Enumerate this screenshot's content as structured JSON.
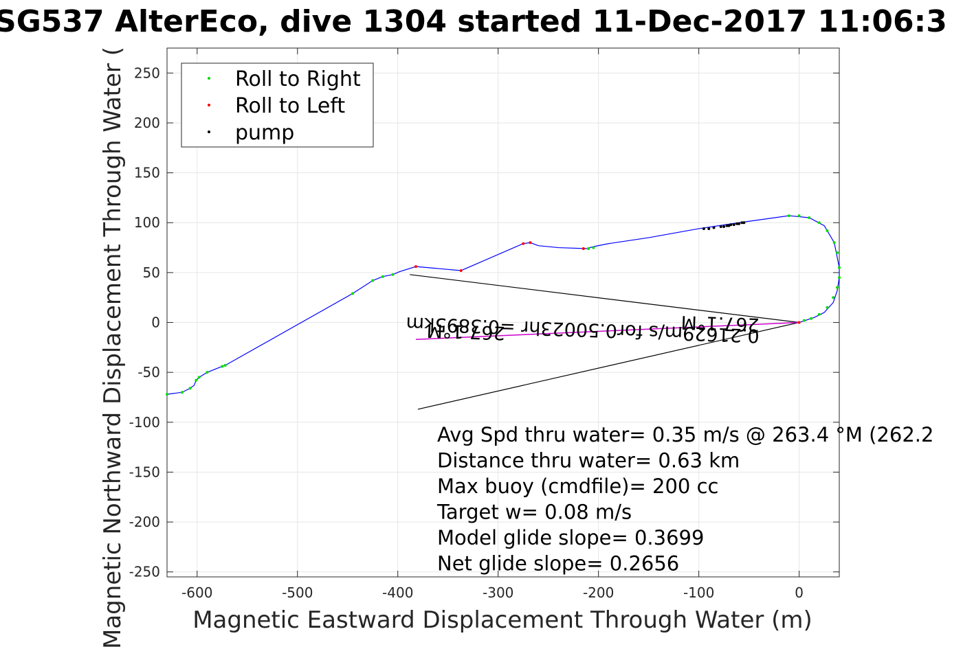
{
  "chart_data": {
    "type": "line",
    "title": "SG537 AlterEco, dive 1304 started 11-Dec-2017 11:06:3",
    "xlabel": "Magnetic Eastward Displacement Through Water (m)",
    "ylabel": "Magnetic Northward Displacement Through Water (",
    "xlim": [
      -630,
      40
    ],
    "ylim": [
      -255,
      275
    ],
    "xticks": [
      -600,
      -500,
      -400,
      -300,
      -200,
      -100,
      0
    ],
    "xtick_labels": [
      "-600",
      "-500",
      "-400",
      "-300",
      "-200",
      "-100",
      "0"
    ],
    "yticks": [
      -250,
      -200,
      -150,
      -100,
      -50,
      0,
      50,
      100,
      150,
      200,
      250
    ],
    "ytick_labels": [
      "-250",
      "-200",
      "-150",
      "-100",
      "-50",
      "0",
      "50",
      "100",
      "150",
      "200",
      "250"
    ],
    "grid": true,
    "legend_position": "top-left",
    "legend": [
      {
        "label": "Roll to Right",
        "color": "#00dd00"
      },
      {
        "label": "Roll to Left",
        "color": "#ff0000"
      },
      {
        "label": "pump",
        "color": "#000000"
      }
    ],
    "track": {
      "color": "#0000ff",
      "x": [
        -630,
        -615,
        -607,
        -603,
        -601,
        -598,
        -590,
        -575,
        -572,
        -445,
        -425,
        -415,
        -405,
        -398,
        -382,
        -337,
        -275,
        -268,
        -260,
        -240,
        -212,
        -205,
        -190,
        -150,
        -100,
        -80,
        -60,
        -10,
        10,
        25,
        35,
        40,
        40,
        38,
        34,
        25,
        15,
        0
      ],
      "y": [
        -72,
        -70,
        -66,
        -63,
        -58,
        -55,
        -50,
        -44,
        -43,
        29,
        42,
        46,
        48,
        51,
        56,
        52,
        79,
        80,
        77,
        75,
        74,
        76,
        79,
        85,
        94,
        97,
        100,
        107,
        105,
        97,
        80,
        55,
        45,
        32,
        20,
        10,
        5,
        0
      ]
    },
    "roll_right": {
      "color": "#00dd00",
      "x": [
        -630,
        -615,
        -607,
        -601,
        -598,
        -590,
        -575,
        -572,
        -445,
        -425,
        -415,
        -405,
        -210,
        -205,
        -10,
        0,
        10,
        20,
        28,
        35,
        38,
        40,
        40,
        38,
        34,
        28,
        20,
        12,
        5
      ],
      "y": [
        -72,
        -70,
        -66,
        -58,
        -55,
        -50,
        -44,
        -43,
        29,
        42,
        46,
        48,
        74,
        75,
        107,
        107,
        105,
        100,
        92,
        80,
        70,
        55,
        45,
        35,
        25,
        15,
        8,
        4,
        2
      ]
    },
    "roll_left": {
      "color": "#ff0000",
      "x": [
        -382,
        -337,
        -275,
        -268,
        -215,
        0
      ],
      "y": [
        56,
        52,
        79,
        80,
        74,
        0
      ]
    },
    "pump": {
      "color": "#000000",
      "x": [
        -95,
        -90,
        -85,
        -78,
        -75,
        -72,
        -70,
        -68,
        -65,
        -62,
        -60,
        -57,
        -55
      ],
      "y": [
        94,
        94,
        95,
        96,
        96,
        97,
        97,
        98,
        98,
        99,
        99,
        100,
        100
      ]
    },
    "current_vector": {
      "color": "#cc00cc",
      "from": [
        0,
        0
      ],
      "to": [
        -382,
        -17
      ],
      "label_1": "0.21629m/s for0.50023hr =0.3895km",
      "label_2": "267.1°M",
      "label_3": "267.1°M"
    },
    "arrowhead_lines": [
      {
        "from": [
          0,
          0
        ],
        "to": [
          -388,
          48
        ]
      },
      {
        "from": [
          0,
          0
        ],
        "to": [
          -380,
          -87
        ]
      }
    ],
    "annotations": [
      "Avg Spd thru water=  0.35 m/s @ 263.4 °M (262.2",
      "Distance thru water=  0.63 km",
      "Max buoy (cmdfile)= 200 cc",
      "Target w= 0.08 m/s",
      "Model glide slope= 0.3699",
      "Net glide slope= 0.2656"
    ]
  }
}
